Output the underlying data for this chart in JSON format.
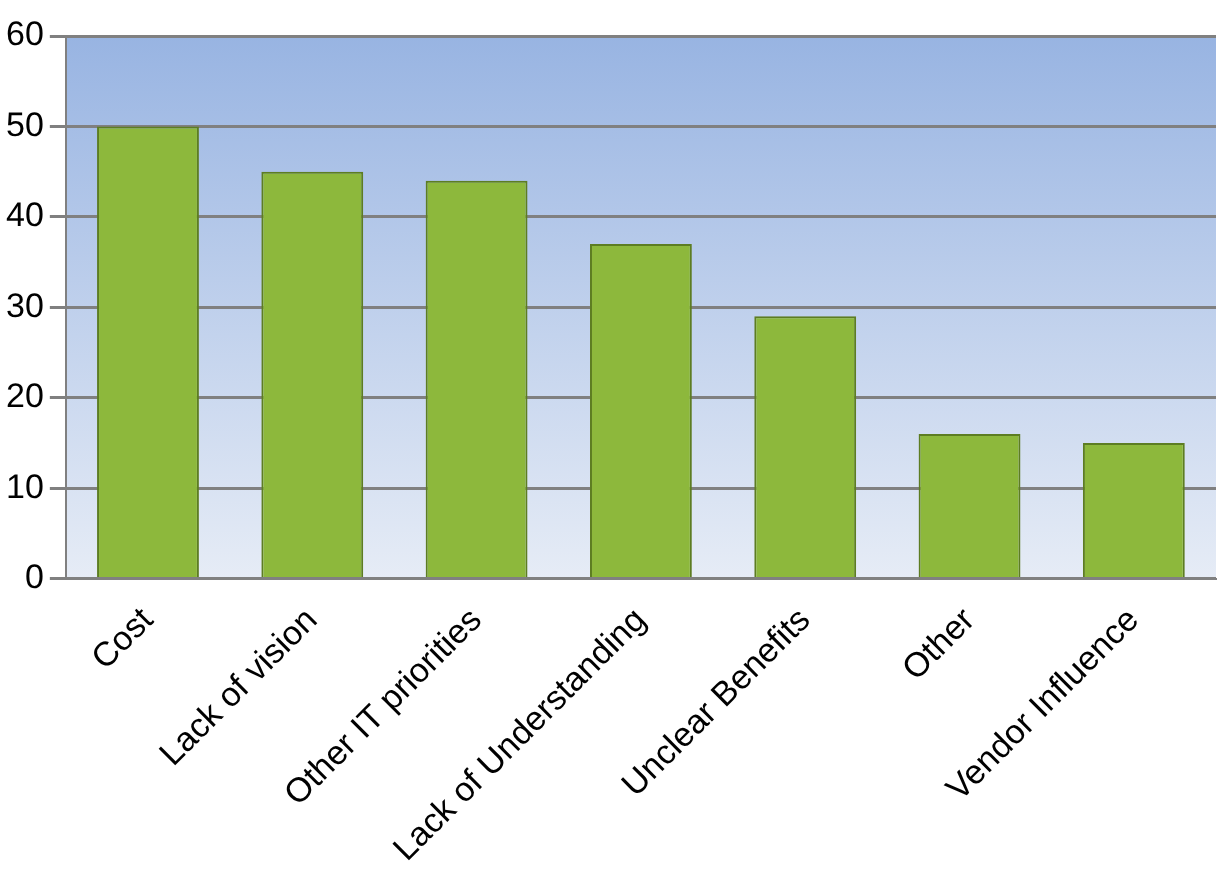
{
  "chart_data": {
    "type": "bar",
    "categories": [
      "Cost",
      "Lack of vision",
      "Other IT priorities",
      "Lack of Understanding",
      "Unclear Benefits",
      "Other",
      "Vendor Influence"
    ],
    "values": [
      50,
      45,
      44,
      37,
      29,
      16,
      15
    ],
    "color": "#8db83c",
    "ylim": [
      0,
      60
    ],
    "yticks": [
      0,
      10,
      20,
      30,
      40,
      50,
      60
    ],
    "grid": "y"
  }
}
